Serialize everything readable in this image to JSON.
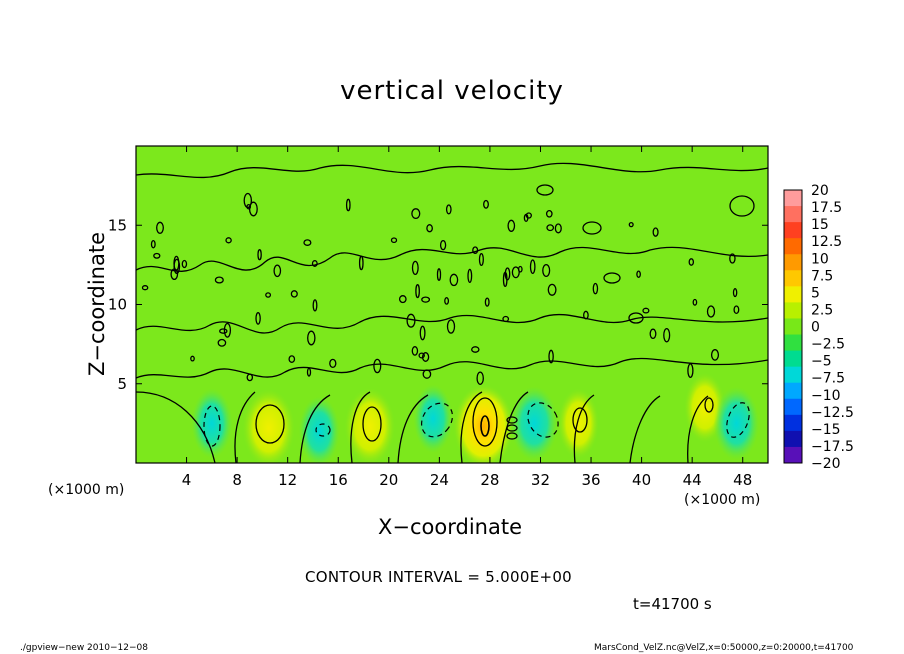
{
  "chart_data": {
    "type": "heatmap",
    "subtype": "filled-contour",
    "title": "vertical velocity",
    "xlabel": "X−coordinate",
    "ylabel": "Z−coordinate",
    "x_unit": "(×1000 m)",
    "xlim": [
      0,
      50
    ],
    "ylim": [
      0,
      20
    ],
    "x_ticks": [
      4,
      8,
      12,
      16,
      20,
      24,
      28,
      32,
      36,
      40,
      44,
      48
    ],
    "y_ticks": [
      5,
      10,
      15
    ],
    "contour_interval": 5,
    "colorbar": {
      "labels": [
        "20",
        "17.5",
        "15",
        "12.5",
        "10",
        "7.5",
        "5",
        "2.5",
        "0",
        "−2.5",
        "−5",
        "−7.5",
        "−10",
        "−12.5",
        "−15",
        "−17.5",
        "−20"
      ],
      "colors": [
        "#ff9c9c",
        "#ff7060",
        "#ff4020",
        "#ff6a00",
        "#ff9a00",
        "#ffc800",
        "#f0f000",
        "#b8f000",
        "#78e818",
        "#30e040",
        "#00dc90",
        "#00d8d8",
        "#00a8ff",
        "#0068ff",
        "#0030e0",
        "#1010b0",
        "#5810b8"
      ]
    },
    "features": [
      {
        "x": 10.5,
        "z": 2.2,
        "value": 7.5
      },
      {
        "x": 18.5,
        "z": 2.3,
        "value": 7.0
      },
      {
        "x": 27.5,
        "z": 2.3,
        "value": 10.0
      },
      {
        "x": 35.0,
        "z": 2.5,
        "value": 4.0
      },
      {
        "x": 45.0,
        "z": 3.5,
        "value": 4.0
      },
      {
        "x": 6.0,
        "z": 2.5,
        "value": -4.0
      },
      {
        "x": 14.5,
        "z": 2.0,
        "value": -4.0
      },
      {
        "x": 23.5,
        "z": 2.8,
        "value": -3.5
      },
      {
        "x": 31.5,
        "z": 2.5,
        "value": -6.0
      },
      {
        "x": 47.5,
        "z": 2.5,
        "value": -5.5
      }
    ]
  },
  "contour_note": "CONTOUR INTERVAL = 5.000E+00",
  "time_note": "t=41700 s",
  "footer": {
    "left": "./gpview−new  2010−12−08",
    "right": "MarsCond_VelZ.nc@VelZ,x=0:50000,z=0:20000,t=41700"
  }
}
